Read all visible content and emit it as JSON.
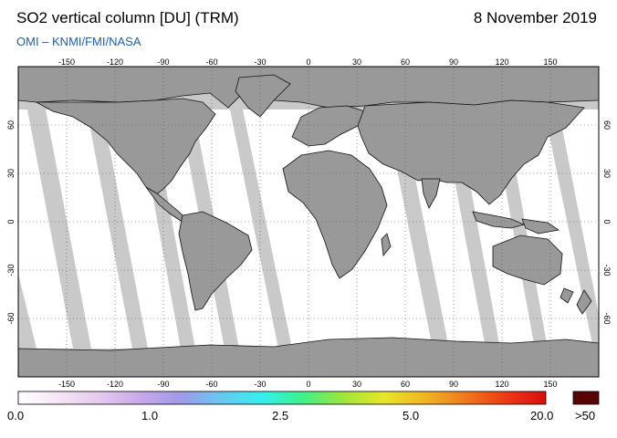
{
  "header": {
    "title": "SO2 vertical column [DU] (TRM)",
    "date": "8 November 2019",
    "source": "OMI  –  KNMI/FMI/NASA"
  },
  "map": {
    "lon_ticks": [
      "-150",
      "-120",
      "-90",
      "-60",
      "-30",
      "0",
      "30",
      "60",
      "90",
      "120",
      "150"
    ],
    "lat_ticks": [
      "60",
      "30",
      "0",
      "-30",
      "-60"
    ]
  },
  "colorbar": {
    "labels": [
      "0.0",
      "1.0",
      "2.5",
      "5.0",
      "20.0"
    ],
    "overflow_label": ">50",
    "stops": [
      "#ffffff",
      "#f4e6f6",
      "#e6c8ee",
      "#c9a8ea",
      "#9f9ae8",
      "#66c8f2",
      "#34f0ee",
      "#3ef08a",
      "#9ee63a",
      "#e8e62a",
      "#f0b624",
      "#f07a1e",
      "#ee3a14",
      "#d80e0e"
    ],
    "overflow_color": "#5a0505"
  },
  "colors": {
    "land": "#999999",
    "ocean_nodata": "#c9c9c9",
    "data_white": "#ffffff"
  }
}
